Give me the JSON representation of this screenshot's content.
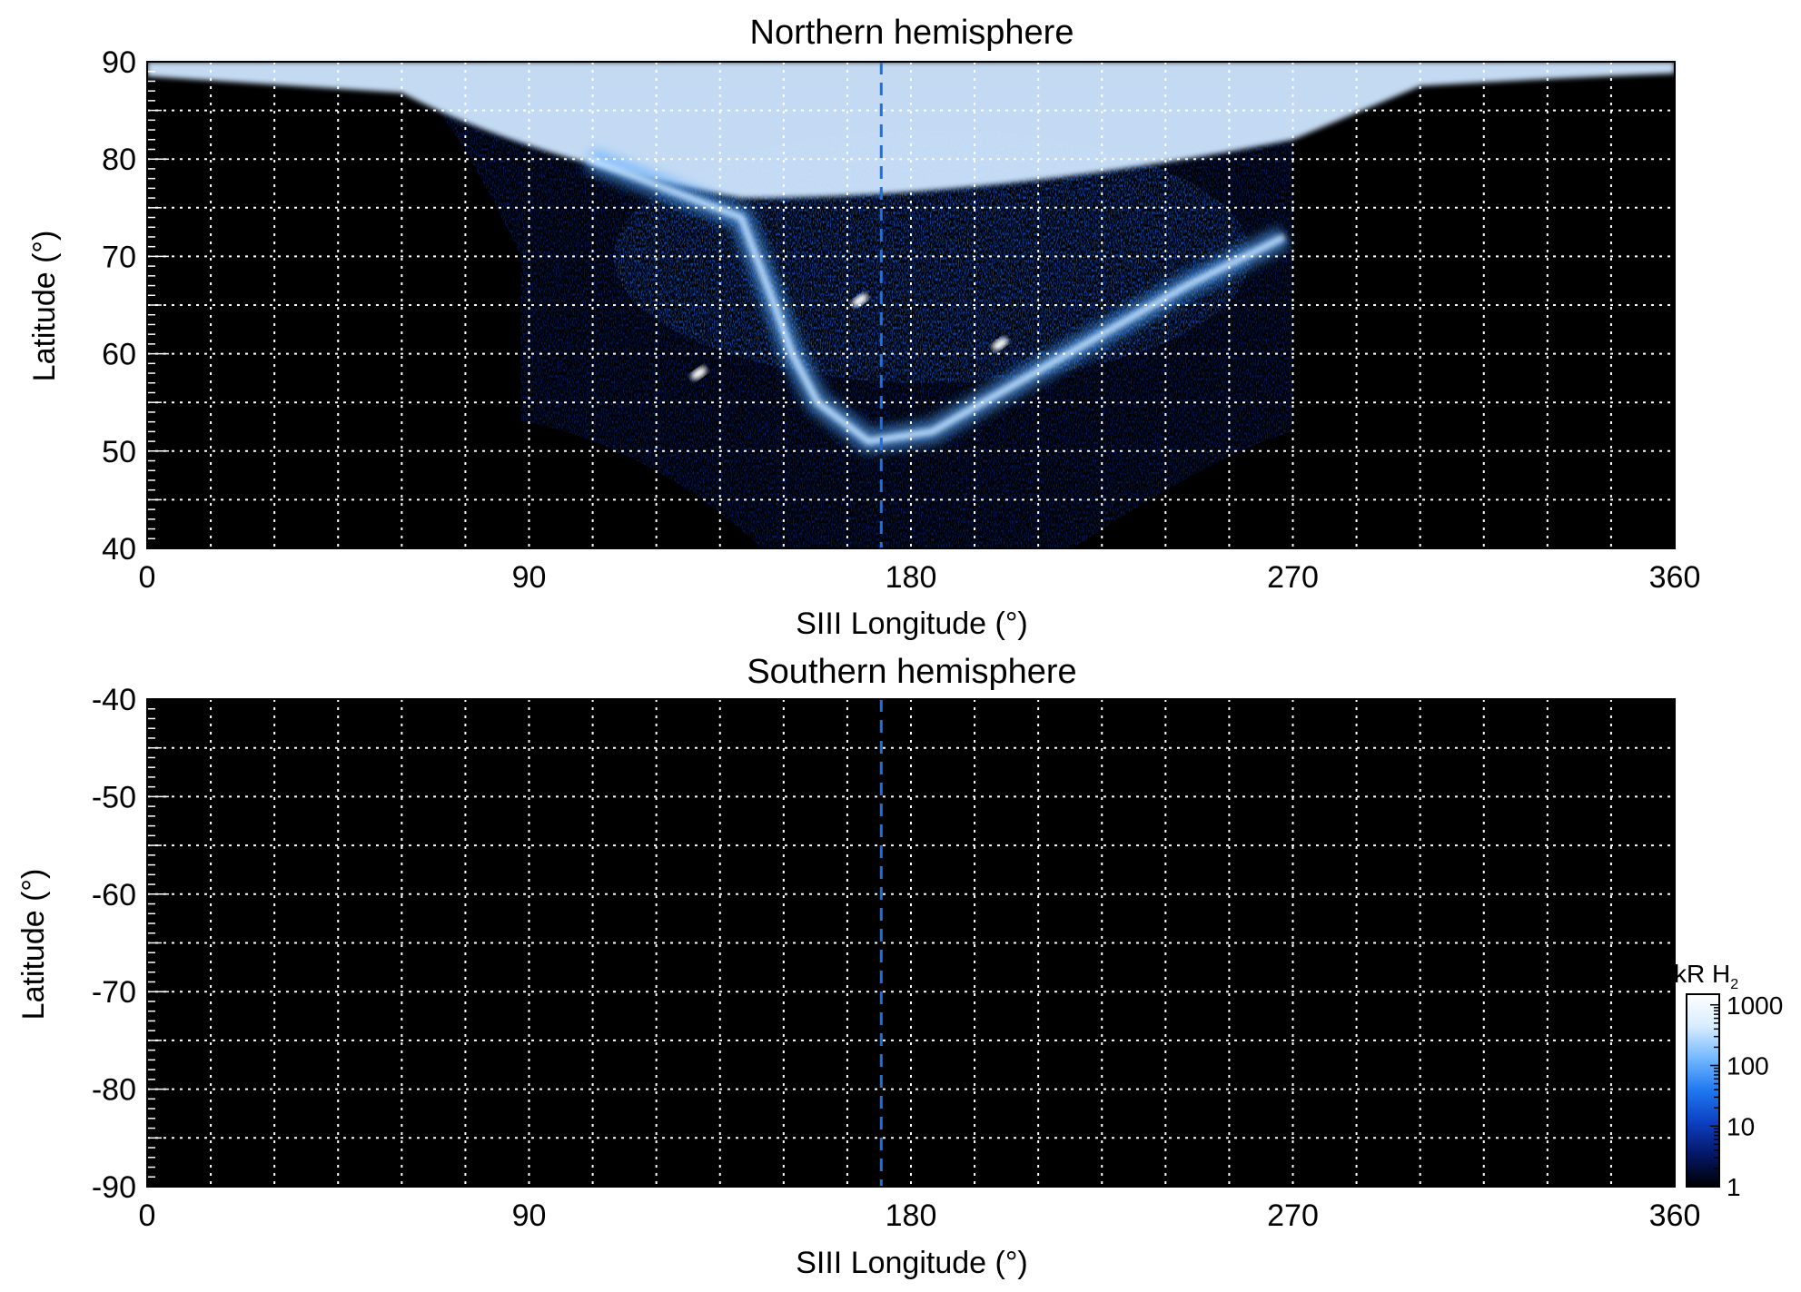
{
  "chart_data": [
    {
      "type": "heatmap",
      "title": "Northern hemisphere",
      "xlabel": "SIII Longitude (°)",
      "ylabel": "Latitude (°)",
      "xlim": [
        0,
        360
      ],
      "ylim": [
        40,
        90
      ],
      "x_ticks": [
        0,
        90,
        180,
        270,
        360
      ],
      "y_ticks": [
        40,
        50,
        60,
        70,
        80,
        90
      ],
      "x_minor_step": 15,
      "y_minor_step": 5,
      "y_small_tick_step": 1,
      "grid": true,
      "reference_longitude": 173,
      "coverage": {
        "lon_min": 75,
        "lon_max": 270,
        "lat_mid_low": 52,
        "bottom_left_lon": 145,
        "bottom_right_lon": 218,
        "bottom_right_top_lon": 268
      },
      "polar_cap": {
        "lat_min": 86,
        "lon_min": 0,
        "lon_max": 360
      },
      "main_oval": [
        [
          104,
          80
        ],
        [
          140,
          74
        ],
        [
          147,
          66
        ],
        [
          152,
          60
        ],
        [
          158,
          55
        ],
        [
          170,
          51
        ],
        [
          185,
          52
        ],
        [
          205,
          57
        ],
        [
          225,
          62
        ],
        [
          245,
          67
        ],
        [
          268,
          72
        ]
      ],
      "bright_spots": [
        {
          "lon": 168,
          "lat": 65.5,
          "level": 1000
        },
        {
          "lon": 130,
          "lat": 58,
          "level": 1000
        },
        {
          "lon": 201,
          "lat": 61,
          "level": 400
        }
      ]
    },
    {
      "type": "heatmap",
      "title": "Southern hemisphere",
      "xlabel": "SIII Longitude (°)",
      "ylabel": "Latitude (°)",
      "xlim": [
        0,
        360
      ],
      "ylim": [
        -90,
        -40
      ],
      "x_ticks": [
        0,
        90,
        180,
        270,
        360
      ],
      "y_ticks": [
        -40,
        -50,
        -60,
        -70,
        -80,
        -90
      ],
      "x_minor_step": 15,
      "y_minor_step": 5,
      "y_small_tick_step": 1,
      "grid": true,
      "reference_longitude": 173,
      "coverage": null
    }
  ],
  "colorbar": {
    "label": "kR H",
    "label_subscript": "2",
    "scale": "log",
    "range": [
      1,
      1500
    ],
    "ticks": [
      "1000",
      "100",
      "10",
      "1"
    ],
    "tick_values": [
      1000,
      100,
      10,
      1
    ],
    "colors": [
      "#000000",
      "#041766",
      "#0d3fc2",
      "#1f78f0",
      "#73b8ff",
      "#d8ecff",
      "#ffffff"
    ]
  }
}
